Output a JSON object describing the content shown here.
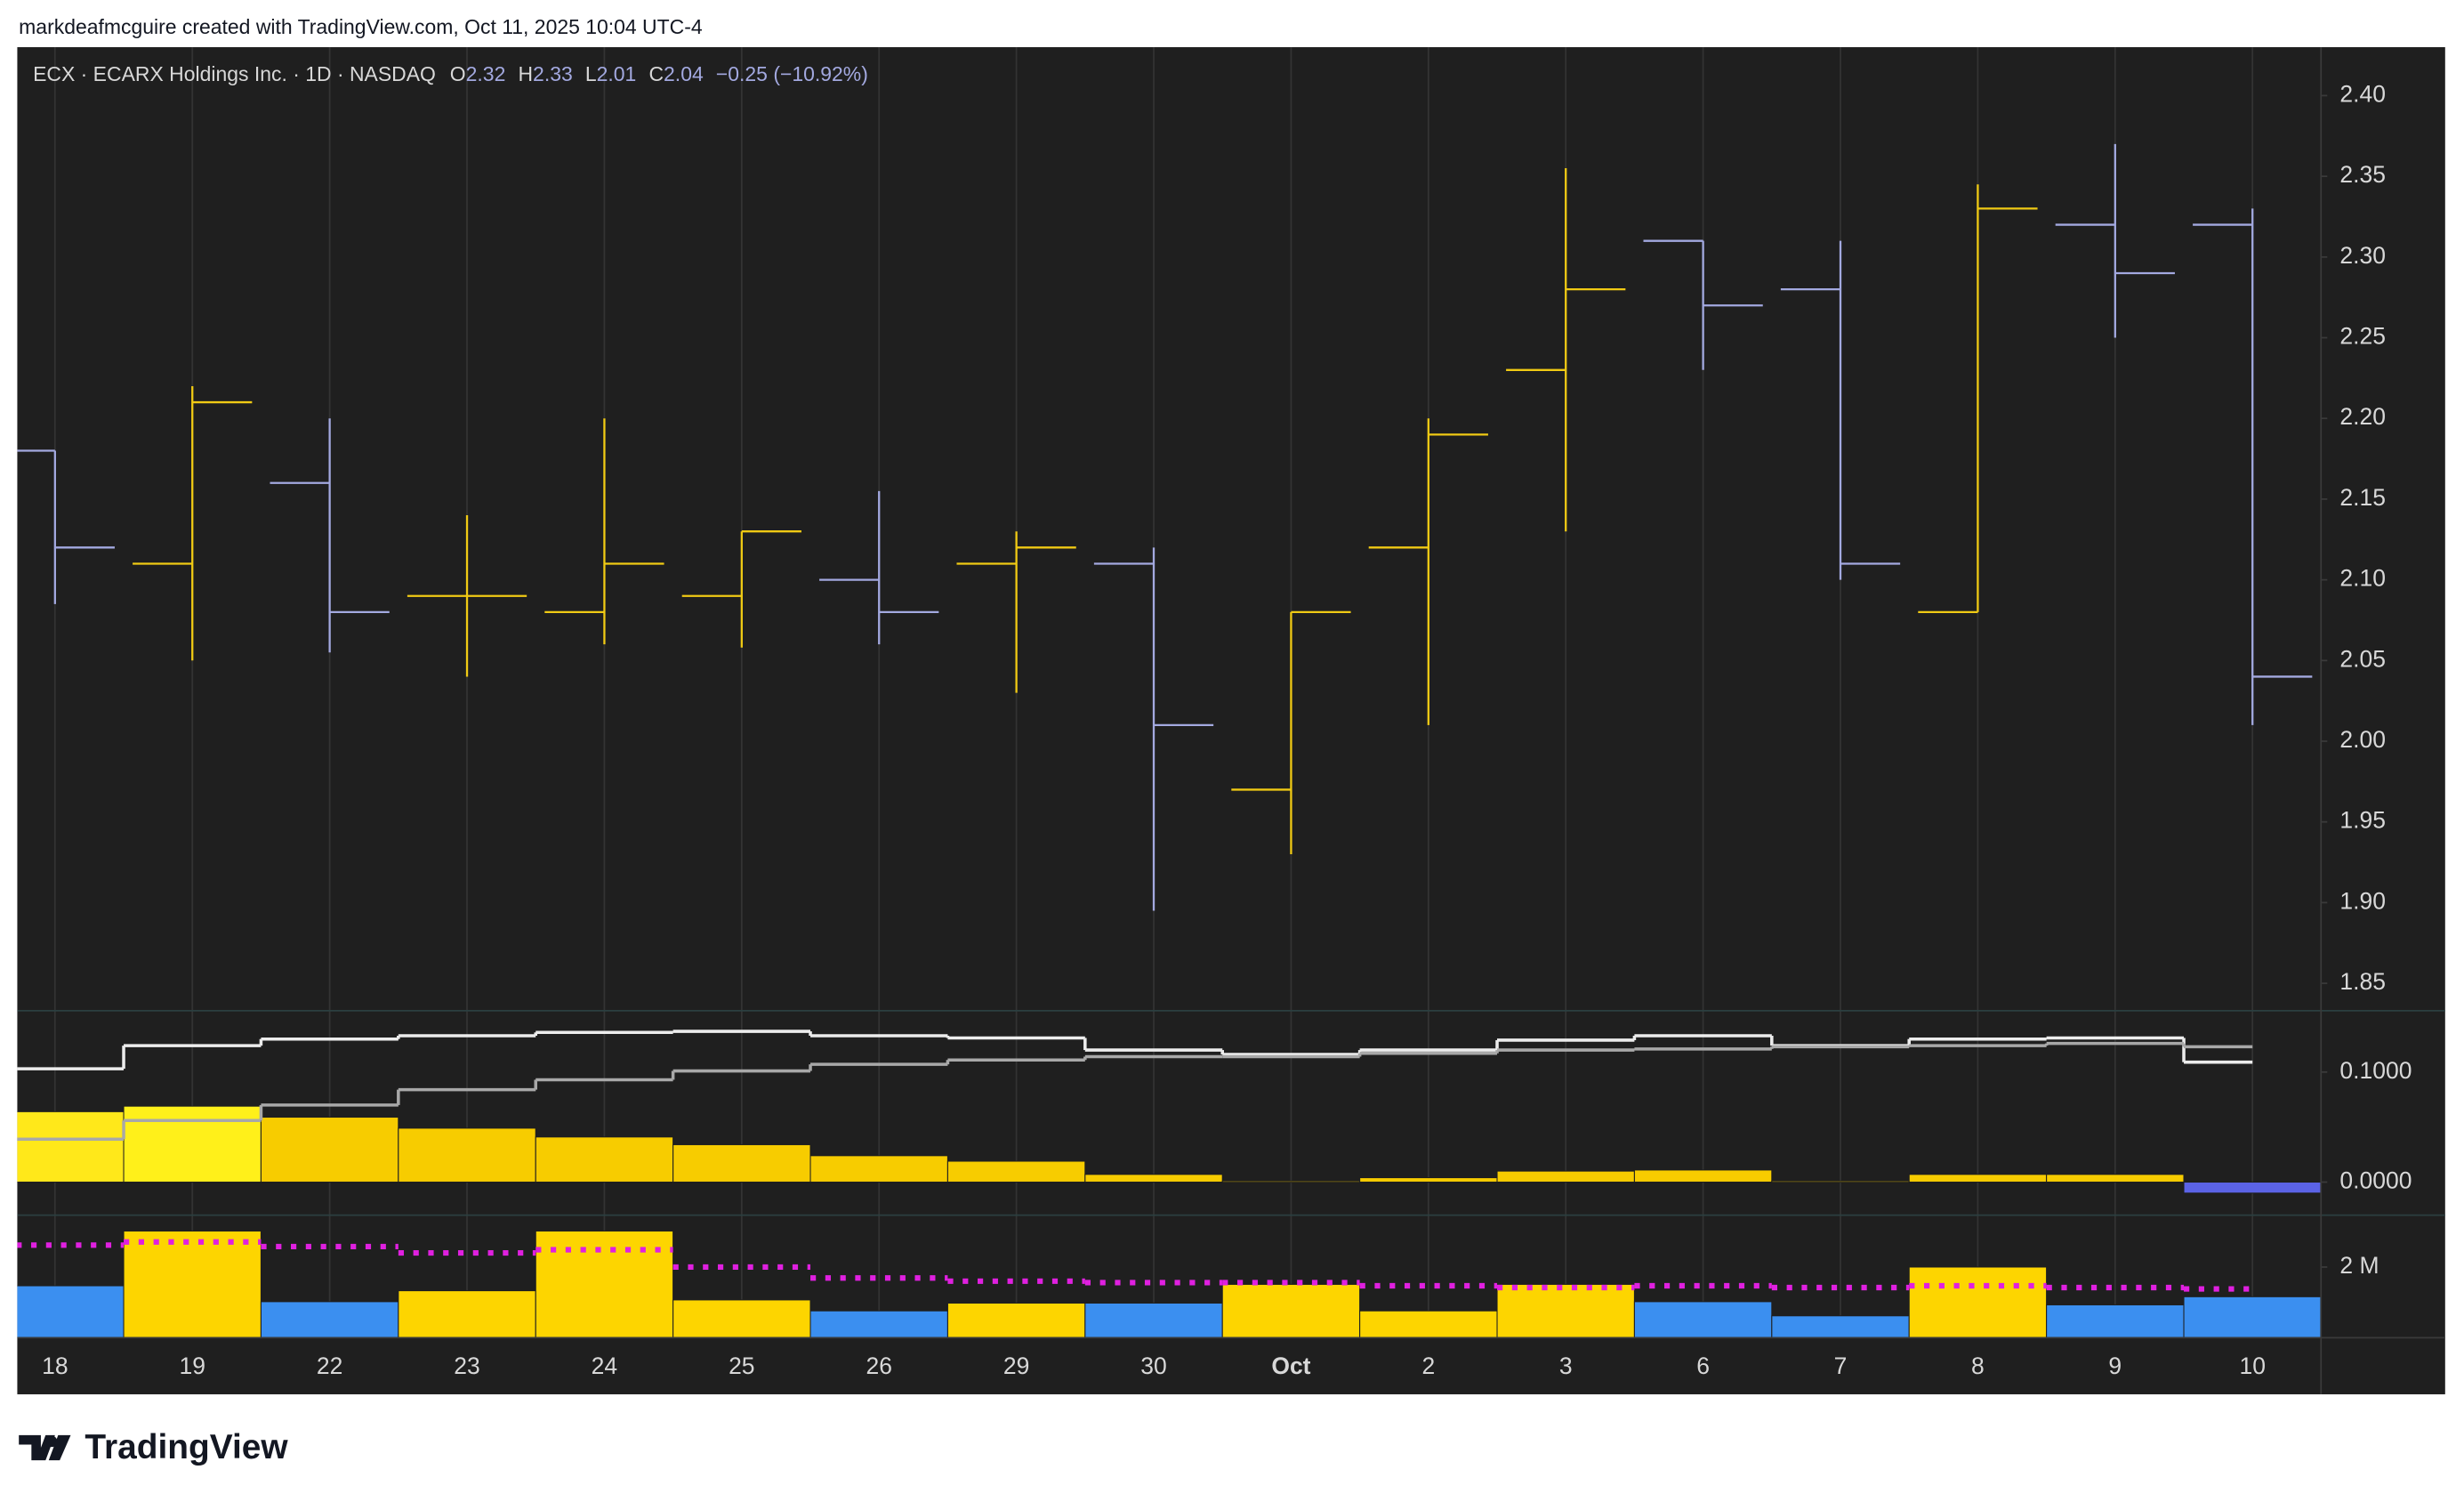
{
  "header": "markdeafmcguire created with TradingView.com, Oct 11, 2025 10:04 UTC-4",
  "footer_logo": "TradingView",
  "chart_data": {
    "type": "ohlc",
    "legend": {
      "symbol": "ECX · ECARX Holdings Inc. · 1D · NASDAQ",
      "items": [
        {
          "label": "O",
          "value": "2.32"
        },
        {
          "label": "H",
          "value": "2.33"
        },
        {
          "label": "L",
          "value": "2.01"
        },
        {
          "label": "C",
          "value": "2.04"
        }
      ],
      "change": "−0.25 (−10.92%)"
    },
    "categories": [
      "18",
      "19",
      "22",
      "23",
      "24",
      "25",
      "26",
      "29",
      "30",
      "Oct",
      "2",
      "3",
      "6",
      "7",
      "8",
      "9",
      "10"
    ],
    "open": [
      2.18,
      2.11,
      2.16,
      2.09,
      2.08,
      2.09,
      2.1,
      2.11,
      2.11,
      1.97,
      2.12,
      2.23,
      2.31,
      2.28,
      2.08,
      2.32,
      2.32
    ],
    "high": [
      2.18,
      2.22,
      2.2,
      2.14,
      2.2,
      2.13,
      2.155,
      2.13,
      2.12,
      2.08,
      2.2,
      2.355,
      2.31,
      2.31,
      2.345,
      2.37,
      2.33
    ],
    "low": [
      2.085,
      2.05,
      2.055,
      2.04,
      2.06,
      2.058,
      2.06,
      2.03,
      1.895,
      1.93,
      2.01,
      2.13,
      2.23,
      2.1,
      2.08,
      2.25,
      2.01
    ],
    "close": [
      2.12,
      2.21,
      2.08,
      2.09,
      2.11,
      2.13,
      2.08,
      2.12,
      2.01,
      2.08,
      2.19,
      2.28,
      2.27,
      2.11,
      2.33,
      2.29,
      2.04
    ],
    "up_color": "#f0ca14",
    "down_color": "#a3a9e0",
    "ylim": [
      1.833,
      2.43
    ],
    "yticks": [
      {
        "value": 2.4,
        "label": "2.40"
      },
      2.35,
      {
        "value": 2.3,
        "label": "2.30"
      },
      2.25,
      {
        "value": 2.2,
        "label": "2.20"
      },
      2.15,
      {
        "value": 2.1,
        "label": "2.10"
      },
      2.05,
      {
        "value": 2.0,
        "label": "2.00"
      },
      1.95,
      {
        "value": 1.9,
        "label": "1.90"
      },
      1.85
    ],
    "grid": true,
    "indicator": {
      "values": [
        0.064,
        0.069,
        0.059,
        0.049,
        0.041,
        0.034,
        0.024,
        0.019,
        0.007,
        0.001,
        0.004,
        0.01,
        0.011,
        0.001,
        0.007,
        0.007,
        -0.01
      ],
      "colors": [
        "#ffe81a",
        "#fff01a",
        "#f7cc00",
        "#f7cc00",
        "#f7cc00",
        "#f7cc00",
        "#f7cc00",
        "#f7cc00",
        "#f7cc00",
        "#f7cc00",
        "#f7cc00",
        "#f7cc00",
        "#f7cc00",
        "#f7cc00",
        "#f7cc00",
        "#f7cc00",
        "#5b63e6"
      ],
      "series": [
        {
          "color": "#ececec",
          "values": [
            0.103,
            0.124,
            0.13,
            0.133,
            0.136,
            0.137,
            0.133,
            0.131,
            0.12,
            0.116,
            0.12,
            0.129,
            0.133,
            0.124,
            0.13,
            0.131,
            0.109
          ]
        },
        {
          "color": "#a8a8a8",
          "values": [
            0.039,
            0.056,
            0.07,
            0.084,
            0.093,
            0.101,
            0.107,
            0.111,
            0.114,
            0.114,
            0.117,
            0.12,
            0.121,
            0.123,
            0.124,
            0.126,
            0.123
          ]
        }
      ],
      "ylim": [
        -0.03,
        0.1557
      ],
      "yticks": [
        {
          "value": 0.1,
          "label": "0.1000"
        },
        {
          "value": 0,
          "label": "0.0000"
        }
      ]
    },
    "volume": {
      "values": [
        1470000,
        3020000,
        1020000,
        1330000,
        3020000,
        1070000,
        760000,
        980000,
        980000,
        1510000,
        760000,
        1510000,
        1020000,
        620000,
        2000000,
        930000,
        1160000
      ],
      "colors": [
        "#3b8ff0",
        "#fdd500",
        "#3b8ff0",
        "#fdd500",
        "#fdd500",
        "#fdd500",
        "#3b8ff0",
        "#fdd500",
        "#3b8ff0",
        "#fdd500",
        "#fdd500",
        "#fdd500",
        "#3b8ff0",
        "#3b8ff0",
        "#fdd500",
        "#3b8ff0",
        "#3b8ff0"
      ],
      "ma": {
        "color": "#e020e0",
        "values": [
          2620000,
          2710000,
          2580000,
          2400000,
          2490000,
          2000000,
          1690000,
          1600000,
          1560000,
          1560000,
          1470000,
          1420000,
          1470000,
          1420000,
          1470000,
          1420000,
          1380000
        ]
      },
      "ylim": [
        0,
        3470000
      ],
      "yticks": [
        {
          "value": 2000000,
          "label": "2 M"
        }
      ]
    }
  }
}
